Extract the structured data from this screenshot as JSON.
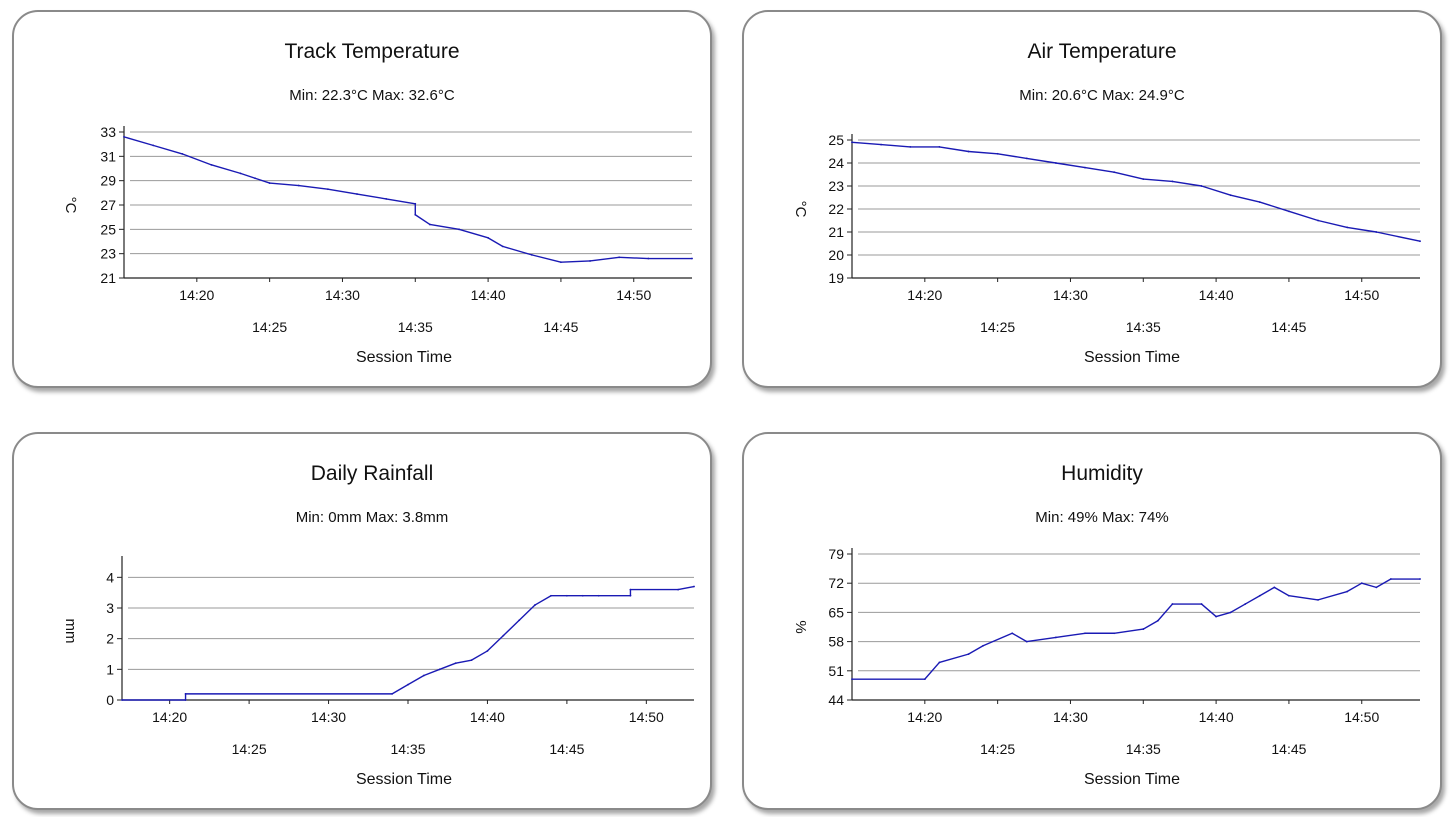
{
  "chart_data": [
    {
      "type": "line",
      "title": "Track Temperature",
      "subtitle": "Min: 22.3°C  Max: 32.6°C",
      "xlabel": "Session Time",
      "ylabel": "°C",
      "xlim": [
        "14:15",
        "14:54"
      ],
      "ylim": [
        21,
        33
      ],
      "yticks": [
        "33",
        "31",
        "29",
        "27",
        "25",
        "23",
        "21"
      ],
      "xticks": [
        "14:20",
        "14:25",
        "14:30",
        "14:35",
        "14:40",
        "14:45",
        "14:50"
      ],
      "series": [
        {
          "color": "#1a1ab4",
          "x": [
            "14:15",
            "14:17",
            "14:19",
            "14:21",
            "14:23",
            "14:24",
            "14:25",
            "14:27",
            "14:29",
            "14:31",
            "14:33",
            "14:35",
            "14:35",
            "14:36",
            "14:38",
            "14:40",
            "14:41",
            "14:43",
            "14:45",
            "14:47",
            "14:49",
            "14:51",
            "14:54"
          ],
          "y": [
            32.6,
            31.9,
            31.2,
            30.3,
            29.6,
            29.2,
            28.8,
            28.6,
            28.3,
            27.9,
            27.5,
            27.1,
            26.2,
            25.4,
            25.0,
            24.3,
            23.6,
            22.9,
            22.3,
            22.4,
            22.7,
            22.6,
            22.6
          ]
        }
      ]
    },
    {
      "type": "line",
      "title": "Air Temperature",
      "subtitle": "Min: 20.6°C  Max: 24.9°C",
      "xlabel": "Session Time",
      "ylabel": "°C",
      "xlim": [
        "14:15",
        "14:54"
      ],
      "ylim": [
        19,
        25
      ],
      "yticks": [
        "25",
        "24",
        "23",
        "22",
        "21",
        "20",
        "19"
      ],
      "xticks": [
        "14:20",
        "14:25",
        "14:30",
        "14:35",
        "14:40",
        "14:45",
        "14:50"
      ],
      "series": [
        {
          "color": "#1a1ab4",
          "x": [
            "14:15",
            "14:17",
            "14:19",
            "14:21",
            "14:23",
            "14:25",
            "14:27",
            "14:29",
            "14:31",
            "14:33",
            "14:35",
            "14:37",
            "14:39",
            "14:41",
            "14:43",
            "14:45",
            "14:47",
            "14:49",
            "14:51",
            "14:54"
          ],
          "y": [
            24.9,
            24.8,
            24.7,
            24.7,
            24.5,
            24.4,
            24.2,
            24.0,
            23.8,
            23.6,
            23.3,
            23.2,
            23.0,
            22.6,
            22.3,
            21.9,
            21.5,
            21.2,
            21.0,
            20.6
          ]
        }
      ]
    },
    {
      "type": "line",
      "title": "Daily Rainfall",
      "subtitle": "Min: 0mm  Max: 3.8mm",
      "xlabel": "Session Time",
      "ylabel": "mm",
      "xlim": [
        "14:17",
        "14:53"
      ],
      "ylim": [
        0,
        4.5
      ],
      "yticks": [
        "4",
        "3",
        "2",
        "1",
        "0"
      ],
      "xticks": [
        "14:20",
        "14:25",
        "14:30",
        "14:35",
        "14:40",
        "14:45",
        "14:50"
      ],
      "series": [
        {
          "color": "#1a1ab4",
          "x": [
            "14:17",
            "14:21",
            "14:21",
            "14:34",
            "14:35",
            "14:36",
            "14:37",
            "14:38",
            "14:39",
            "14:40",
            "14:41",
            "14:42",
            "14:43",
            "14:44",
            "14:45",
            "14:46",
            "14:47",
            "14:49",
            "14:49",
            "14:52",
            "14:53"
          ],
          "y": [
            0,
            0,
            0.2,
            0.2,
            0.5,
            0.8,
            1.0,
            1.2,
            1.3,
            1.6,
            2.1,
            2.6,
            3.1,
            3.4,
            3.4,
            3.4,
            3.4,
            3.4,
            3.6,
            3.6,
            3.7
          ]
        }
      ]
    },
    {
      "type": "line",
      "title": "Humidity",
      "subtitle": "Min: 49%  Max: 74%",
      "xlabel": "Session Time",
      "ylabel": "%",
      "xlim": [
        "14:15",
        "14:54"
      ],
      "ylim": [
        44,
        79
      ],
      "yticks": [
        "79",
        "72",
        "65",
        "58",
        "51",
        "44"
      ],
      "xticks": [
        "14:20",
        "14:25",
        "14:30",
        "14:35",
        "14:40",
        "14:45",
        "14:50"
      ],
      "series": [
        {
          "color": "#1a1ab4",
          "x": [
            "14:15",
            "14:20",
            "14:21",
            "14:23",
            "14:24",
            "14:26",
            "14:27",
            "14:29",
            "14:31",
            "14:33",
            "14:35",
            "14:36",
            "14:37",
            "14:39",
            "14:40",
            "14:41",
            "14:42",
            "14:43",
            "14:44",
            "14:45",
            "14:47",
            "14:49",
            "14:50",
            "14:51",
            "14:52",
            "14:54"
          ],
          "y": [
            49,
            49,
            53,
            55,
            57,
            60,
            58,
            59,
            60,
            60,
            61,
            63,
            67,
            67,
            64,
            65,
            67,
            69,
            71,
            69,
            68,
            70,
            72,
            71,
            73,
            73
          ]
        }
      ]
    }
  ]
}
